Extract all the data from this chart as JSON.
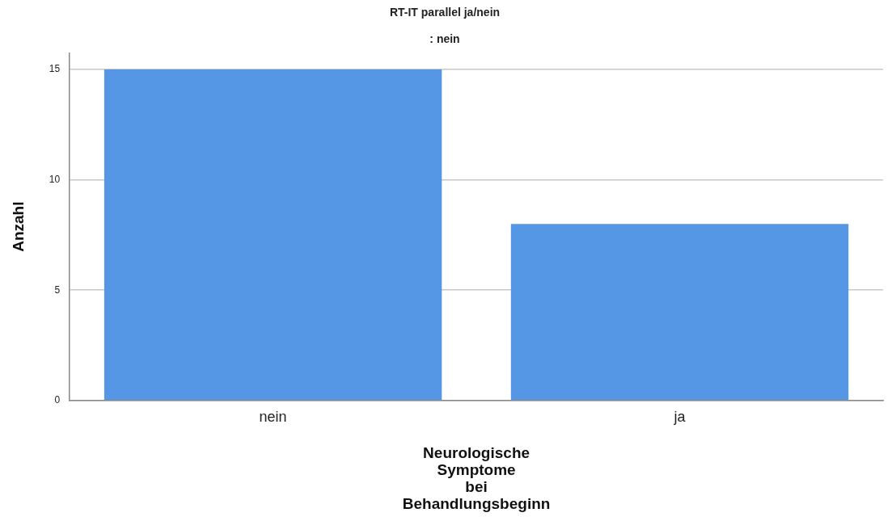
{
  "chart_data": {
    "type": "bar",
    "title": "RT-IT parallel ja/nein",
    "subtitle": ": nein",
    "xlabel": "Neurologische Symptome bei Behandlungsbeginn",
    "ylabel": "Anzahl",
    "categories": [
      "nein",
      "ja"
    ],
    "values": [
      15,
      8
    ],
    "color": "#5597e4",
    "ylim": [
      0,
      15.75
    ],
    "yticks": [
      0,
      5,
      10,
      15
    ],
    "grid": "y",
    "legend": false
  }
}
